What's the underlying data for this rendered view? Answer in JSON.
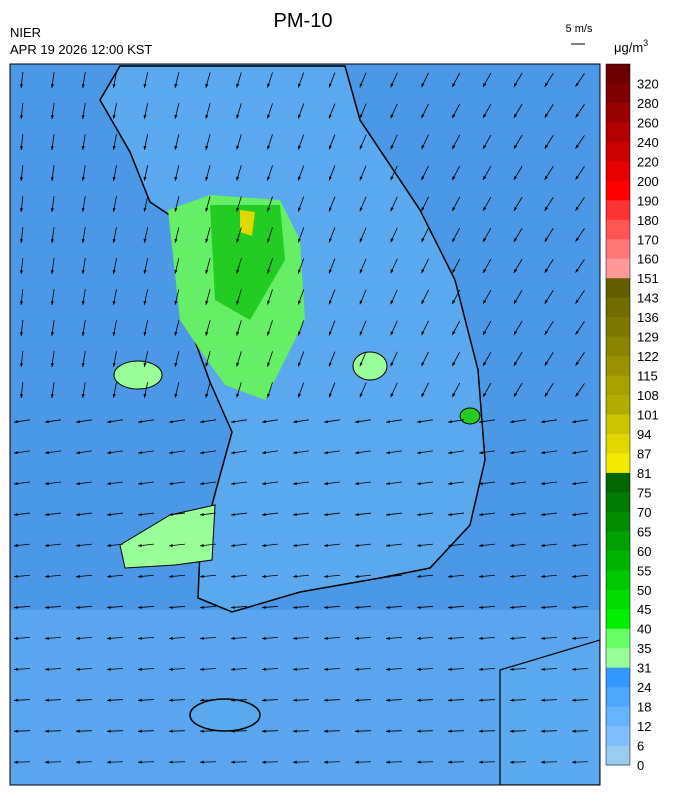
{
  "header": {
    "title": "PM-10",
    "agency": "NIER",
    "time": "APR 19 2026 12:00 KST",
    "wind_scale": "5 m/s",
    "unit": "μg/m",
    "unit_power": "3"
  },
  "legend": {
    "levels": [
      320,
      280,
      260,
      240,
      220,
      200,
      190,
      180,
      170,
      160,
      151,
      143,
      136,
      129,
      122,
      115,
      108,
      101,
      94,
      87,
      81,
      75,
      70,
      65,
      60,
      55,
      50,
      45,
      40,
      35,
      31,
      24,
      18,
      12,
      6,
      0
    ],
    "colors": [
      "#6b0000",
      "#800000",
      "#990000",
      "#b30000",
      "#cc0000",
      "#e60000",
      "#ff0000",
      "#ff3333",
      "#ff5555",
      "#ff7777",
      "#ff9999",
      "#665c00",
      "#736a00",
      "#807700",
      "#8c8400",
      "#999100",
      "#a6a000",
      "#b3ac00",
      "#ccc400",
      "#e0d800",
      "#f2ea00",
      "#006600",
      "#007a00",
      "#008c00",
      "#00a000",
      "#00b400",
      "#00c800",
      "#00dc00",
      "#00f000",
      "#66ff66",
      "#99ff99",
      "#3399ff",
      "#4da6ff",
      "#66b3ff",
      "#80bfff",
      "#99ccee"
    ]
  }
}
